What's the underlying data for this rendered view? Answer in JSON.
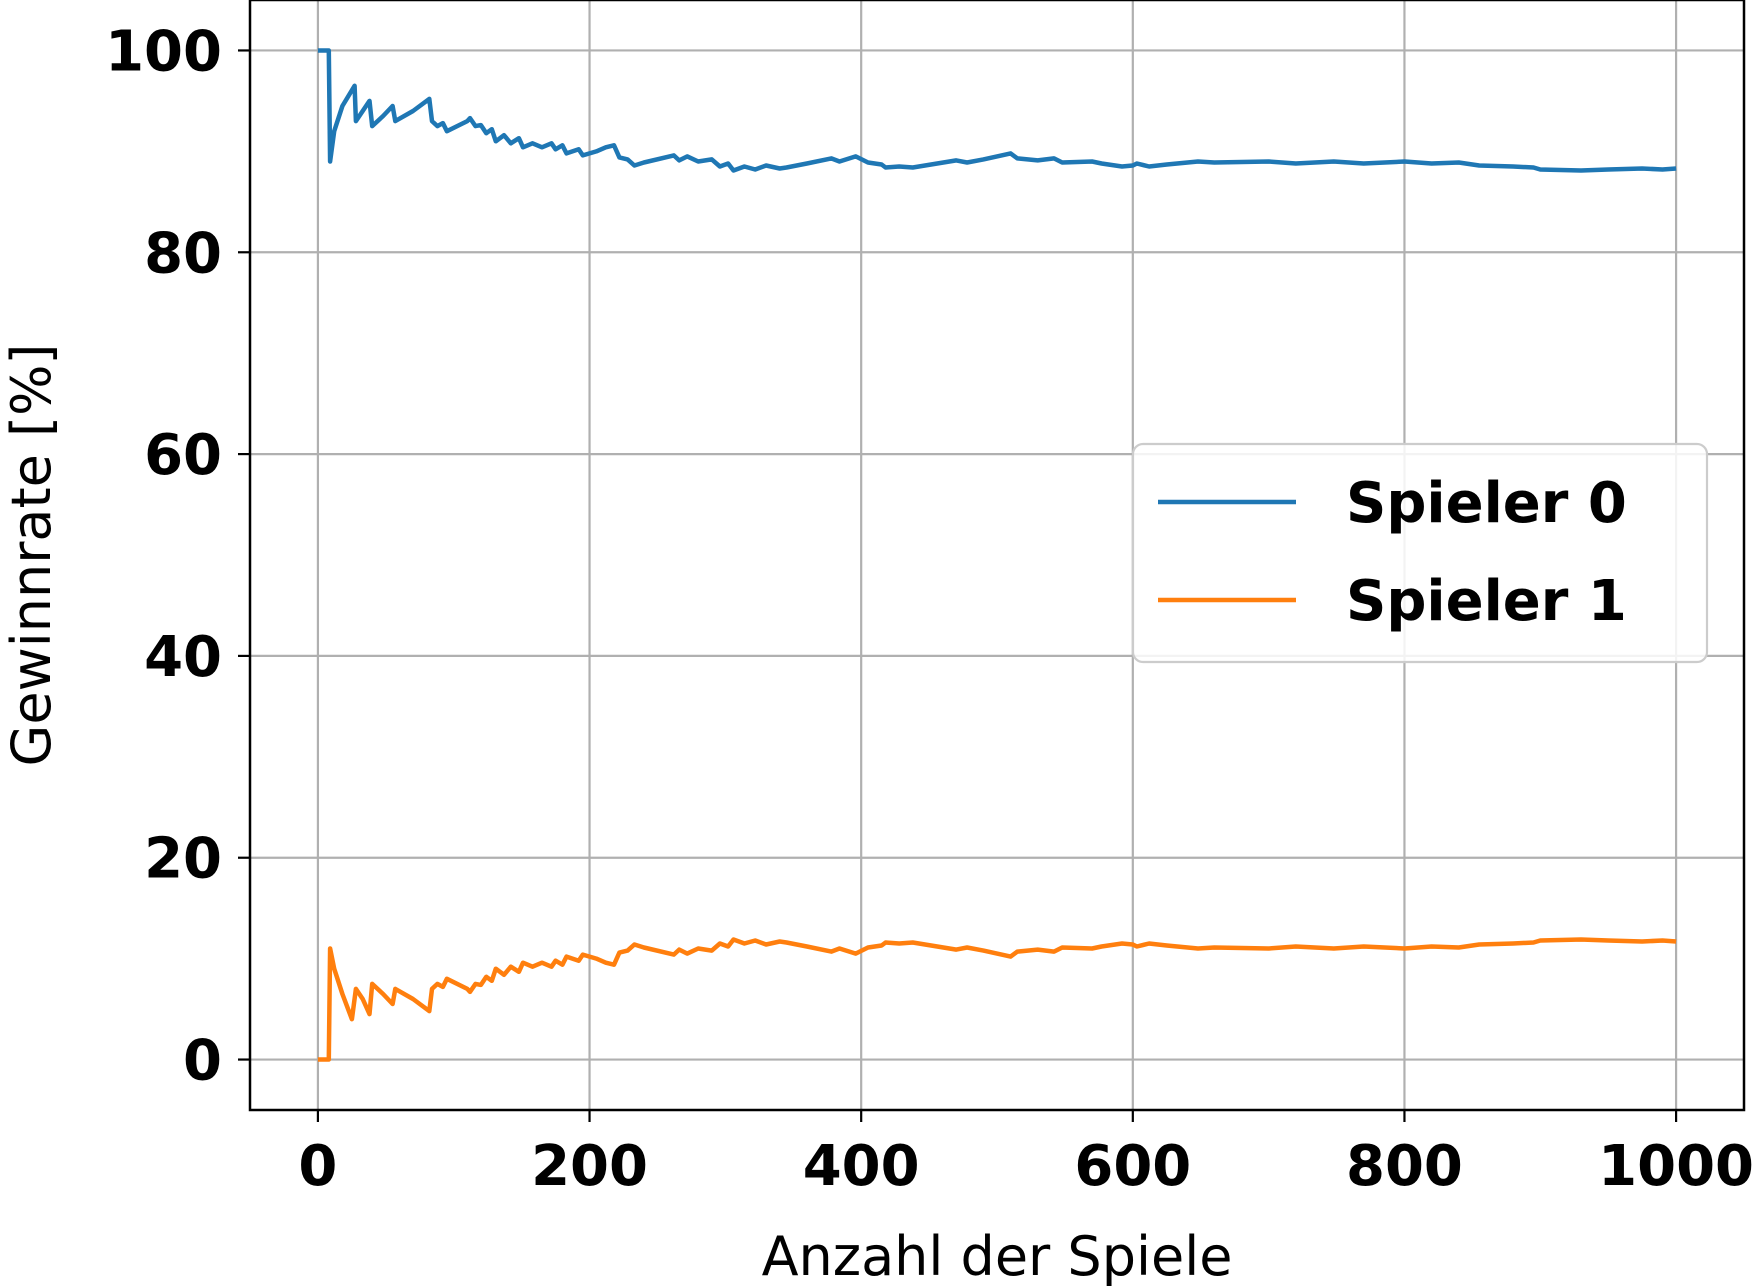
{
  "chart_data": {
    "type": "line",
    "xlabel": "Anzahl der Spiele",
    "ylabel": "Gewinnrate [%]",
    "xlim": [
      -50,
      1050
    ],
    "ylim": [
      -5,
      105
    ],
    "xticks": [
      0,
      200,
      400,
      600,
      800,
      1000
    ],
    "yticks": [
      0,
      20,
      40,
      60,
      80,
      100
    ],
    "grid": true,
    "legend_position": "center-right",
    "series": [
      {
        "name": "Spieler 0",
        "color": "#1f77b4",
        "points": [
          [
            0,
            100
          ],
          [
            8,
            100
          ],
          [
            9,
            89
          ],
          [
            12,
            92
          ],
          [
            18,
            94.5
          ],
          [
            27,
            96.5
          ],
          [
            28,
            93
          ],
          [
            33,
            94
          ],
          [
            38,
            95
          ],
          [
            40,
            92.5
          ],
          [
            48,
            93.5
          ],
          [
            55,
            94.5
          ],
          [
            57,
            93
          ],
          [
            70,
            94
          ],
          [
            80,
            95
          ],
          [
            82,
            95.2
          ],
          [
            84,
            93
          ],
          [
            88,
            92.5
          ],
          [
            92,
            92.8
          ],
          [
            95,
            92
          ],
          [
            110,
            93
          ],
          [
            112,
            93.3
          ],
          [
            116,
            92.5
          ],
          [
            120,
            92.6
          ],
          [
            124,
            91.8
          ],
          [
            128,
            92.2
          ],
          [
            131,
            91
          ],
          [
            137,
            91.6
          ],
          [
            142,
            90.8
          ],
          [
            148,
            91.3
          ],
          [
            151,
            90.4
          ],
          [
            158,
            90.8
          ],
          [
            165,
            90.4
          ],
          [
            172,
            90.8
          ],
          [
            175,
            90.2
          ],
          [
            180,
            90.6
          ],
          [
            183,
            89.8
          ],
          [
            192,
            90.2
          ],
          [
            195,
            89.6
          ],
          [
            205,
            90
          ],
          [
            212,
            90.4
          ],
          [
            218,
            90.6
          ],
          [
            222,
            89.4
          ],
          [
            228,
            89.2
          ],
          [
            233,
            88.6
          ],
          [
            240,
            88.9
          ],
          [
            262,
            89.6
          ],
          [
            266,
            89.1
          ],
          [
            272,
            89.5
          ],
          [
            280,
            89
          ],
          [
            290,
            89.2
          ],
          [
            296,
            88.5
          ],
          [
            302,
            88.8
          ],
          [
            306,
            88.1
          ],
          [
            314,
            88.5
          ],
          [
            322,
            88.2
          ],
          [
            330,
            88.6
          ],
          [
            340,
            88.3
          ],
          [
            345,
            88.4
          ],
          [
            360,
            88.8
          ],
          [
            378,
            89.3
          ],
          [
            384,
            89
          ],
          [
            396,
            89.5
          ],
          [
            405,
            88.9
          ],
          [
            415,
            88.7
          ],
          [
            418,
            88.4
          ],
          [
            428,
            88.5
          ],
          [
            438,
            88.4
          ],
          [
            470,
            89.1
          ],
          [
            478,
            88.9
          ],
          [
            490,
            89.2
          ],
          [
            510,
            89.8
          ],
          [
            515,
            89.3
          ],
          [
            530,
            89.1
          ],
          [
            542,
            89.3
          ],
          [
            548,
            88.9
          ],
          [
            570,
            89
          ],
          [
            577,
            88.8
          ],
          [
            587,
            88.6
          ],
          [
            592,
            88.5
          ],
          [
            600,
            88.6
          ],
          [
            603,
            88.8
          ],
          [
            612,
            88.5
          ],
          [
            625,
            88.7
          ],
          [
            648,
            89
          ],
          [
            660,
            88.9
          ],
          [
            700,
            89
          ],
          [
            720,
            88.8
          ],
          [
            748,
            89
          ],
          [
            770,
            88.8
          ],
          [
            800,
            89
          ],
          [
            820,
            88.8
          ],
          [
            840,
            88.9
          ],
          [
            855,
            88.6
          ],
          [
            880,
            88.5
          ],
          [
            895,
            88.4
          ],
          [
            900,
            88.2
          ],
          [
            930,
            88.1
          ],
          [
            950,
            88.2
          ],
          [
            975,
            88.3
          ],
          [
            990,
            88.2
          ],
          [
            1000,
            88.3
          ]
        ]
      },
      {
        "name": "Spieler 1",
        "color": "#ff7f0e",
        "points": [
          [
            0,
            0
          ],
          [
            8,
            0
          ],
          [
            9,
            11
          ],
          [
            12,
            9
          ],
          [
            18,
            6.5
          ],
          [
            25,
            4
          ],
          [
            28,
            7
          ],
          [
            33,
            6
          ],
          [
            38,
            4.5
          ],
          [
            40,
            7.5
          ],
          [
            48,
            6.5
          ],
          [
            55,
            5.5
          ],
          [
            57,
            7
          ],
          [
            70,
            6
          ],
          [
            80,
            5
          ],
          [
            82,
            4.8
          ],
          [
            84,
            7
          ],
          [
            88,
            7.5
          ],
          [
            92,
            7.2
          ],
          [
            95,
            8
          ],
          [
            110,
            7
          ],
          [
            112,
            6.7
          ],
          [
            116,
            7.5
          ],
          [
            120,
            7.4
          ],
          [
            124,
            8.2
          ],
          [
            128,
            7.8
          ],
          [
            131,
            9
          ],
          [
            137,
            8.4
          ],
          [
            142,
            9.2
          ],
          [
            148,
            8.7
          ],
          [
            151,
            9.6
          ],
          [
            158,
            9.2
          ],
          [
            165,
            9.6
          ],
          [
            172,
            9.2
          ],
          [
            175,
            9.8
          ],
          [
            180,
            9.4
          ],
          [
            183,
            10.2
          ],
          [
            192,
            9.8
          ],
          [
            195,
            10.4
          ],
          [
            205,
            10
          ],
          [
            212,
            9.6
          ],
          [
            218,
            9.4
          ],
          [
            222,
            10.6
          ],
          [
            228,
            10.8
          ],
          [
            233,
            11.4
          ],
          [
            240,
            11.1
          ],
          [
            262,
            10.4
          ],
          [
            266,
            10.9
          ],
          [
            272,
            10.5
          ],
          [
            280,
            11
          ],
          [
            290,
            10.8
          ],
          [
            296,
            11.5
          ],
          [
            302,
            11.2
          ],
          [
            306,
            11.9
          ],
          [
            314,
            11.5
          ],
          [
            322,
            11.8
          ],
          [
            330,
            11.4
          ],
          [
            340,
            11.7
          ],
          [
            345,
            11.6
          ],
          [
            360,
            11.2
          ],
          [
            378,
            10.7
          ],
          [
            384,
            11
          ],
          [
            396,
            10.5
          ],
          [
            405,
            11.1
          ],
          [
            415,
            11.3
          ],
          [
            418,
            11.6
          ],
          [
            428,
            11.5
          ],
          [
            438,
            11.6
          ],
          [
            470,
            10.9
          ],
          [
            478,
            11.1
          ],
          [
            490,
            10.8
          ],
          [
            510,
            10.2
          ],
          [
            515,
            10.7
          ],
          [
            530,
            10.9
          ],
          [
            542,
            10.7
          ],
          [
            548,
            11.1
          ],
          [
            570,
            11
          ],
          [
            577,
            11.2
          ],
          [
            587,
            11.4
          ],
          [
            592,
            11.5
          ],
          [
            600,
            11.4
          ],
          [
            603,
            11.2
          ],
          [
            612,
            11.5
          ],
          [
            625,
            11.3
          ],
          [
            648,
            11
          ],
          [
            660,
            11.1
          ],
          [
            700,
            11
          ],
          [
            720,
            11.2
          ],
          [
            748,
            11
          ],
          [
            770,
            11.2
          ],
          [
            800,
            11
          ],
          [
            820,
            11.2
          ],
          [
            840,
            11.1
          ],
          [
            855,
            11.4
          ],
          [
            880,
            11.5
          ],
          [
            895,
            11.6
          ],
          [
            900,
            11.8
          ],
          [
            930,
            11.9
          ],
          [
            950,
            11.8
          ],
          [
            975,
            11.7
          ],
          [
            990,
            11.8
          ],
          [
            1000,
            11.7
          ]
        ]
      }
    ]
  }
}
